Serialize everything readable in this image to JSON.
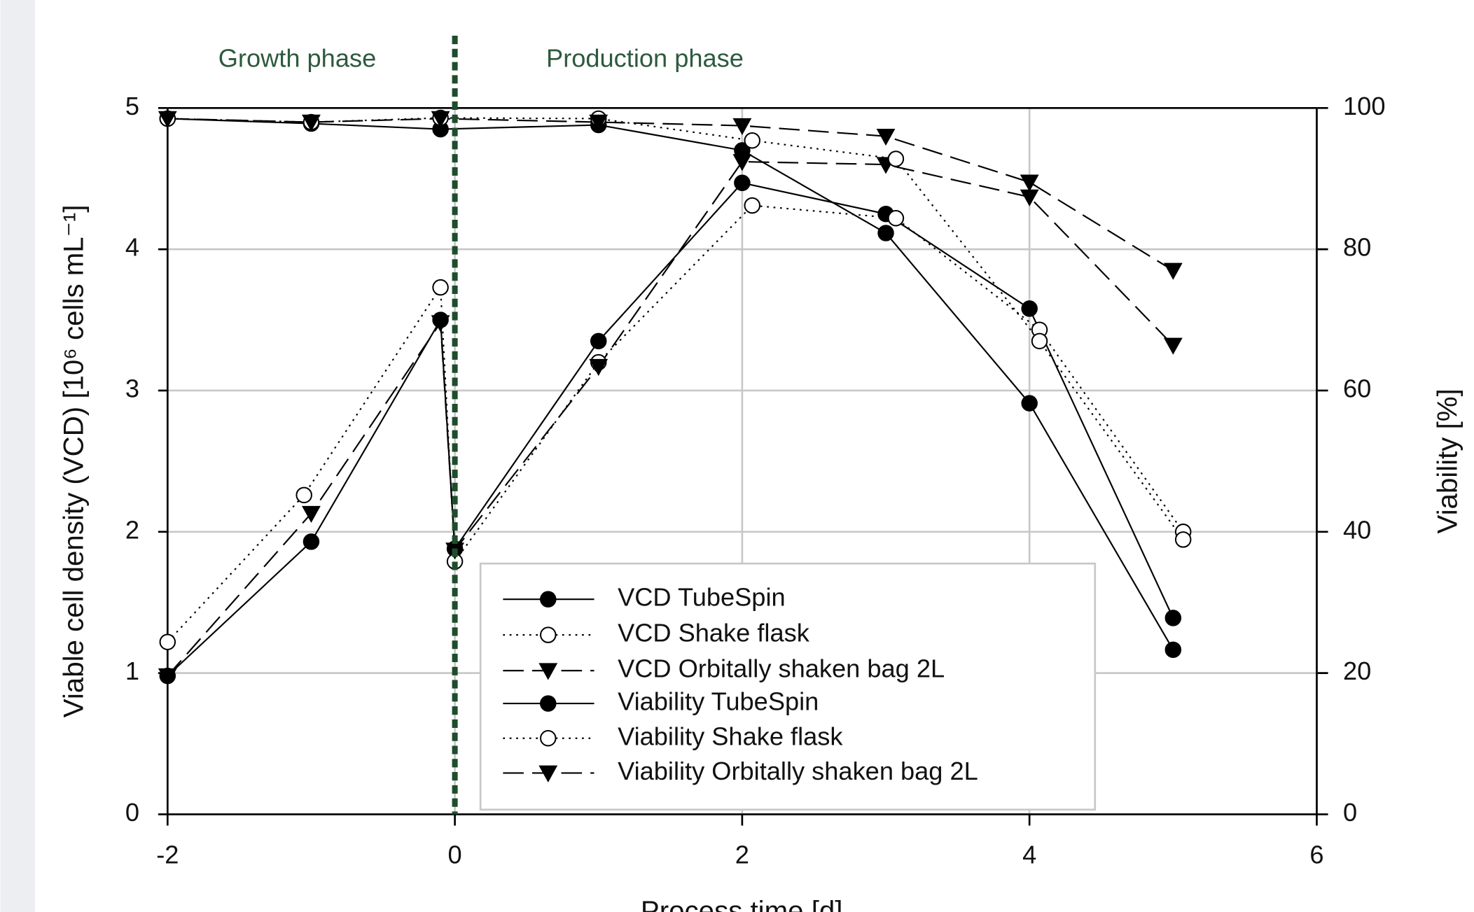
{
  "chart_data": {
    "type": "line",
    "xlabel": "Process time [d]",
    "ylabel": "Viable cell density (VCD) [10⁶ cells mL⁻¹]",
    "y2label": "Viability [%]",
    "xlim": [
      -2,
      6
    ],
    "xticks": [
      -2,
      0,
      2,
      4,
      6
    ],
    "ylim": [
      0,
      5
    ],
    "yticks": [
      0,
      1,
      2,
      3,
      4,
      5
    ],
    "y2lim": [
      0,
      100
    ],
    "y2ticks": [
      0,
      20,
      40,
      60,
      80,
      100
    ],
    "grid": true,
    "legend": "lower center",
    "annotations": [
      {
        "text": "Growth phase"
      },
      {
        "text": "Production phase"
      }
    ],
    "phase_divider": {
      "x": 0,
      "color": "#1e4d2b"
    },
    "series": [
      {
        "name": "VCD TubeSpin",
        "color": "#000000",
        "marker": "circle-filled",
        "dash": "solid",
        "x": [
          -2,
          -1,
          -0.1,
          0,
          1,
          2,
          3,
          4,
          5
        ],
        "values": [
          0.98,
          1.93,
          3.5,
          1.88,
          3.35,
          4.47,
          4.25,
          3.58,
          1.39
        ]
      },
      {
        "name": "VCD Shake flask",
        "color": "#000000",
        "marker": "circle-open",
        "dash": "dotted",
        "x": [
          -2,
          -1.05,
          -0.1,
          0,
          1,
          2.07,
          3.07,
          4.07,
          5.07
        ],
        "values": [
          1.22,
          2.26,
          3.73,
          1.79,
          3.2,
          4.31,
          4.22,
          3.43,
          2.0
        ]
      },
      {
        "name": "VCD Orbitally shaken bag 2L",
        "color": "#000000",
        "marker": "triangle-down",
        "dash": "dashed",
        "x": [
          -2,
          -1,
          -0.1,
          0,
          1,
          2,
          3,
          4,
          5
        ],
        "values": [
          0.98,
          2.13,
          3.48,
          1.87,
          3.17,
          4.62,
          4.6,
          4.37,
          3.32
        ]
      },
      {
        "name": "Viability TubeSpin",
        "color": "#000000",
        "marker": "circle-filled",
        "dash": "solid",
        "axis": "y2",
        "x": [
          -2,
          -1,
          -0.1,
          1,
          2,
          3,
          4,
          5
        ],
        "values": [
          98.5,
          97.8,
          97,
          97.6,
          94,
          82.3,
          58.2,
          23.3
        ]
      },
      {
        "name": "Viability Shake flask",
        "color": "#000000",
        "marker": "circle-open",
        "dash": "dotted",
        "axis": "y2",
        "x": [
          -2,
          -1,
          -0.1,
          1,
          2.07,
          3.07,
          4.07,
          5.07
        ],
        "values": [
          98.5,
          98,
          98.6,
          98.5,
          95.4,
          92.8,
          67,
          38.9
        ]
      },
      {
        "name": "Viability Orbitally shaken bag 2L",
        "color": "#000000",
        "marker": "triangle-down",
        "dash": "dashed",
        "axis": "y2",
        "x": [
          -2,
          -1,
          -0.1,
          1,
          2,
          3,
          4,
          5
        ],
        "values": [
          98.5,
          98,
          98.5,
          98,
          97.5,
          96,
          89.5,
          77
        ]
      }
    ]
  }
}
